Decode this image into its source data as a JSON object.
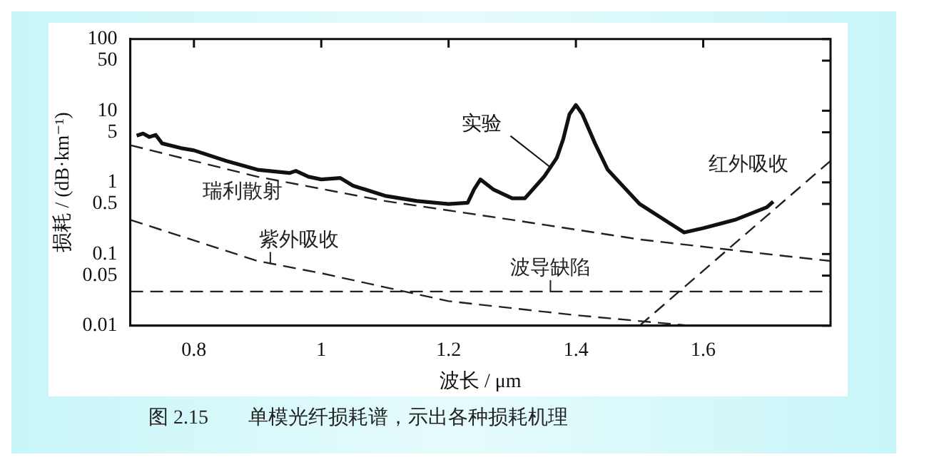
{
  "chart_data": {
    "type": "line",
    "xlabel": "波长 / μm",
    "ylabel": "损耗 / (dB·km⁻¹)",
    "annotations": [
      "图 2.15　　单模光纤损耗谱，示出各种损耗机理"
    ],
    "log": "y",
    "grid": false,
    "legend": false,
    "marker": "none",
    "xlim": [
      0.7,
      1.8
    ],
    "xticks": [
      0.8,
      1.0,
      1.2,
      1.4,
      1.6
    ],
    "ylim": [
      0.01,
      100
    ],
    "yticks": [
      0.01,
      0.05,
      0.1,
      0.5,
      1,
      5,
      10,
      50,
      100
    ],
    "series": [
      {
        "name": "实验",
        "color": "#111111",
        "line_style": "solid",
        "x": [
          0.71,
          0.72,
          0.73,
          0.74,
          0.75,
          0.78,
          0.8,
          0.85,
          0.9,
          0.95,
          0.96,
          0.98,
          1.0,
          1.03,
          1.05,
          1.1,
          1.15,
          1.2,
          1.23,
          1.24,
          1.25,
          1.27,
          1.3,
          1.32,
          1.35,
          1.37,
          1.38,
          1.39,
          1.4,
          1.41,
          1.43,
          1.45,
          1.5,
          1.55,
          1.57,
          1.6,
          1.65,
          1.7,
          1.71
        ],
        "values": [
          4.5,
          4.8,
          4.3,
          4.6,
          3.5,
          3.0,
          2.8,
          2.0,
          1.5,
          1.35,
          1.45,
          1.2,
          1.1,
          1.15,
          0.9,
          0.65,
          0.55,
          0.5,
          0.52,
          0.8,
          1.1,
          0.8,
          0.6,
          0.6,
          1.2,
          2.2,
          4,
          9,
          12,
          9,
          3.5,
          1.5,
          0.5,
          0.26,
          0.2,
          0.23,
          0.3,
          0.45,
          0.54
        ]
      },
      {
        "name": "瑞利散射",
        "color": "#222222",
        "line_style": "dashed",
        "x": [
          0.7,
          0.9,
          1.1,
          1.3,
          1.5,
          1.7,
          1.8
        ],
        "values": [
          3.3,
          1.2,
          0.55,
          0.3,
          0.16,
          0.1,
          0.08
        ]
      },
      {
        "name": "紫外吸收",
        "color": "#222222",
        "line_style": "dashed",
        "x": [
          0.7,
          0.9,
          1.0,
          1.2,
          1.4,
          1.58
        ],
        "values": [
          0.3,
          0.08,
          0.054,
          0.022,
          0.014,
          0.01
        ]
      },
      {
        "name": "波导缺陷",
        "color": "#222222",
        "line_style": "dashed",
        "x": [
          0.7,
          1.8
        ],
        "values": [
          0.03,
          0.03
        ]
      },
      {
        "name": "红外吸收",
        "color": "#222222",
        "line_style": "dashed",
        "x": [
          1.5,
          1.8
        ],
        "values": [
          0.01,
          2
        ]
      }
    ]
  }
}
